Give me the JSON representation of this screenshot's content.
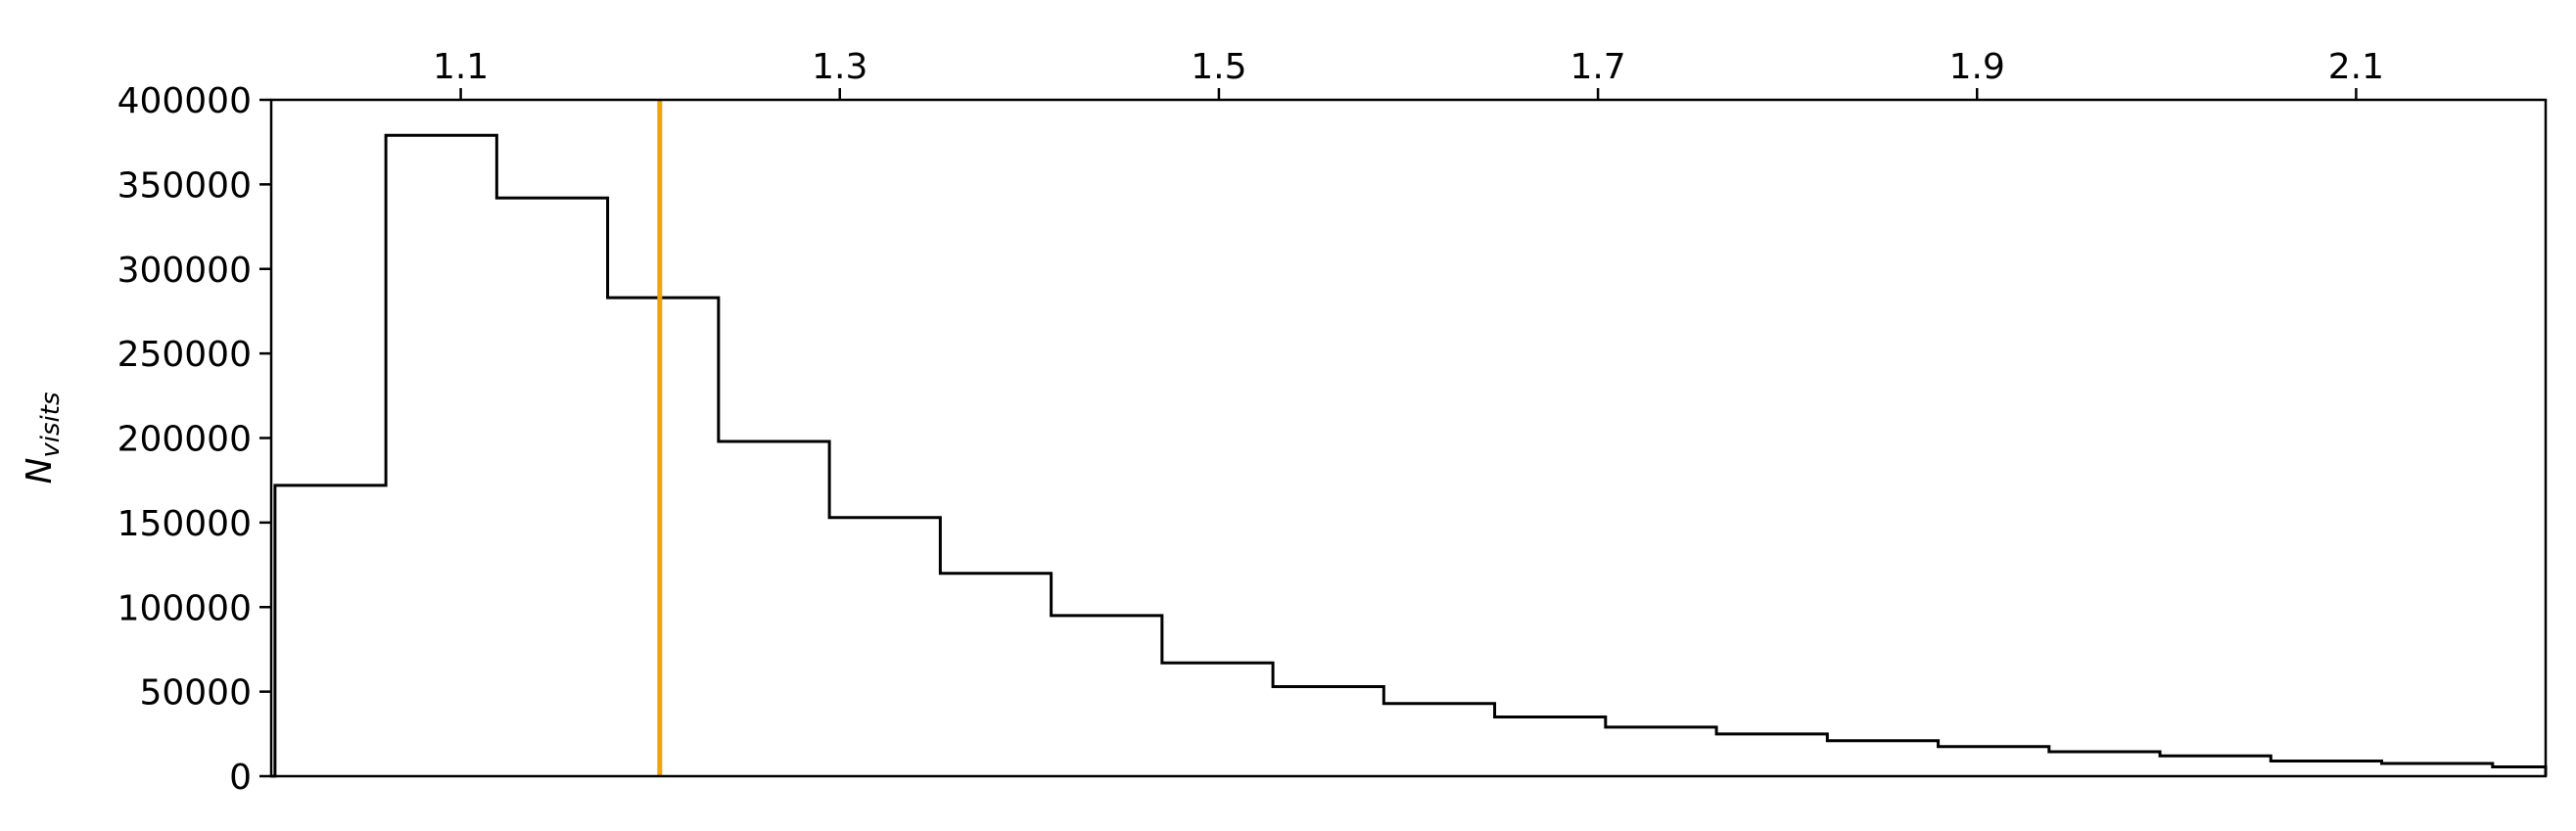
{
  "chart_data": {
    "type": "histogram",
    "xlabel": "",
    "ylabel_main": "N",
    "ylabel_sub": "visits",
    "xlim": [
      1.0,
      2.2
    ],
    "ylim": [
      0,
      400000
    ],
    "x_axis_position": "top",
    "x_ticks": [
      "1.1",
      "1.3",
      "1.5",
      "1.7",
      "1.9",
      "2.1"
    ],
    "y_ticks": [
      "0",
      "50000",
      "100000",
      "150000",
      "200000",
      "250000",
      "300000",
      "350000",
      "400000"
    ],
    "grid": false,
    "legend": "none",
    "reference_line": {
      "x": 1.205,
      "color": "#f0a30a"
    },
    "bin_edges": [
      1.0,
      1.002,
      1.0605,
      1.119,
      1.1775,
      1.236,
      1.2945,
      1.353,
      1.4115,
      1.47,
      1.5285,
      1.587,
      1.6455,
      1.704,
      1.7625,
      1.821,
      1.8795,
      1.938,
      1.9965,
      2.055,
      2.1135,
      2.172,
      2.2
    ],
    "counts": [
      0,
      172000,
      379000,
      342000,
      283000,
      198000,
      153000,
      120000,
      95000,
      67000,
      53000,
      43000,
      35000,
      29000,
      25000,
      21000,
      17500,
      14500,
      12000,
      9000,
      7500,
      5500
    ],
    "line_color": "#000000"
  }
}
